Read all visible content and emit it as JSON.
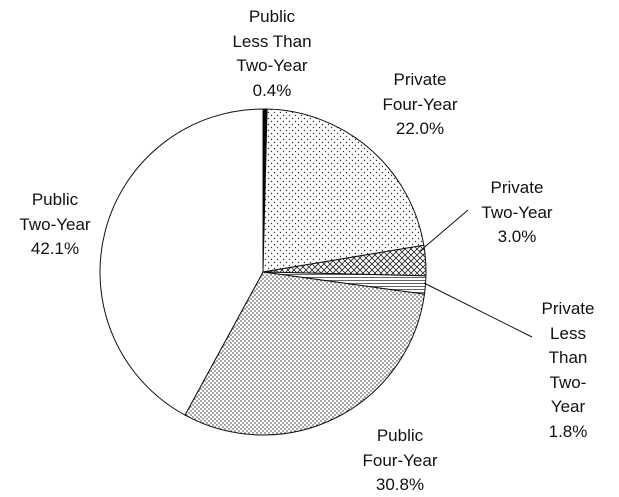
{
  "chart_data": {
    "type": "pie",
    "categories": [
      "Public\nLess Than\nTwo-Year",
      "Private\nFour-Year",
      "Private\nTwo-Year",
      "Private\nLess Than\nTwo-Year",
      "Public\nFour-Year",
      "Public\nTwo-Year"
    ],
    "values": [
      0.4,
      22.0,
      3.0,
      1.8,
      30.8,
      42.1
    ],
    "value_labels": [
      "0.4%",
      "22.0%",
      "3.0%",
      "1.8%",
      "30.8%",
      "42.1%"
    ]
  }
}
